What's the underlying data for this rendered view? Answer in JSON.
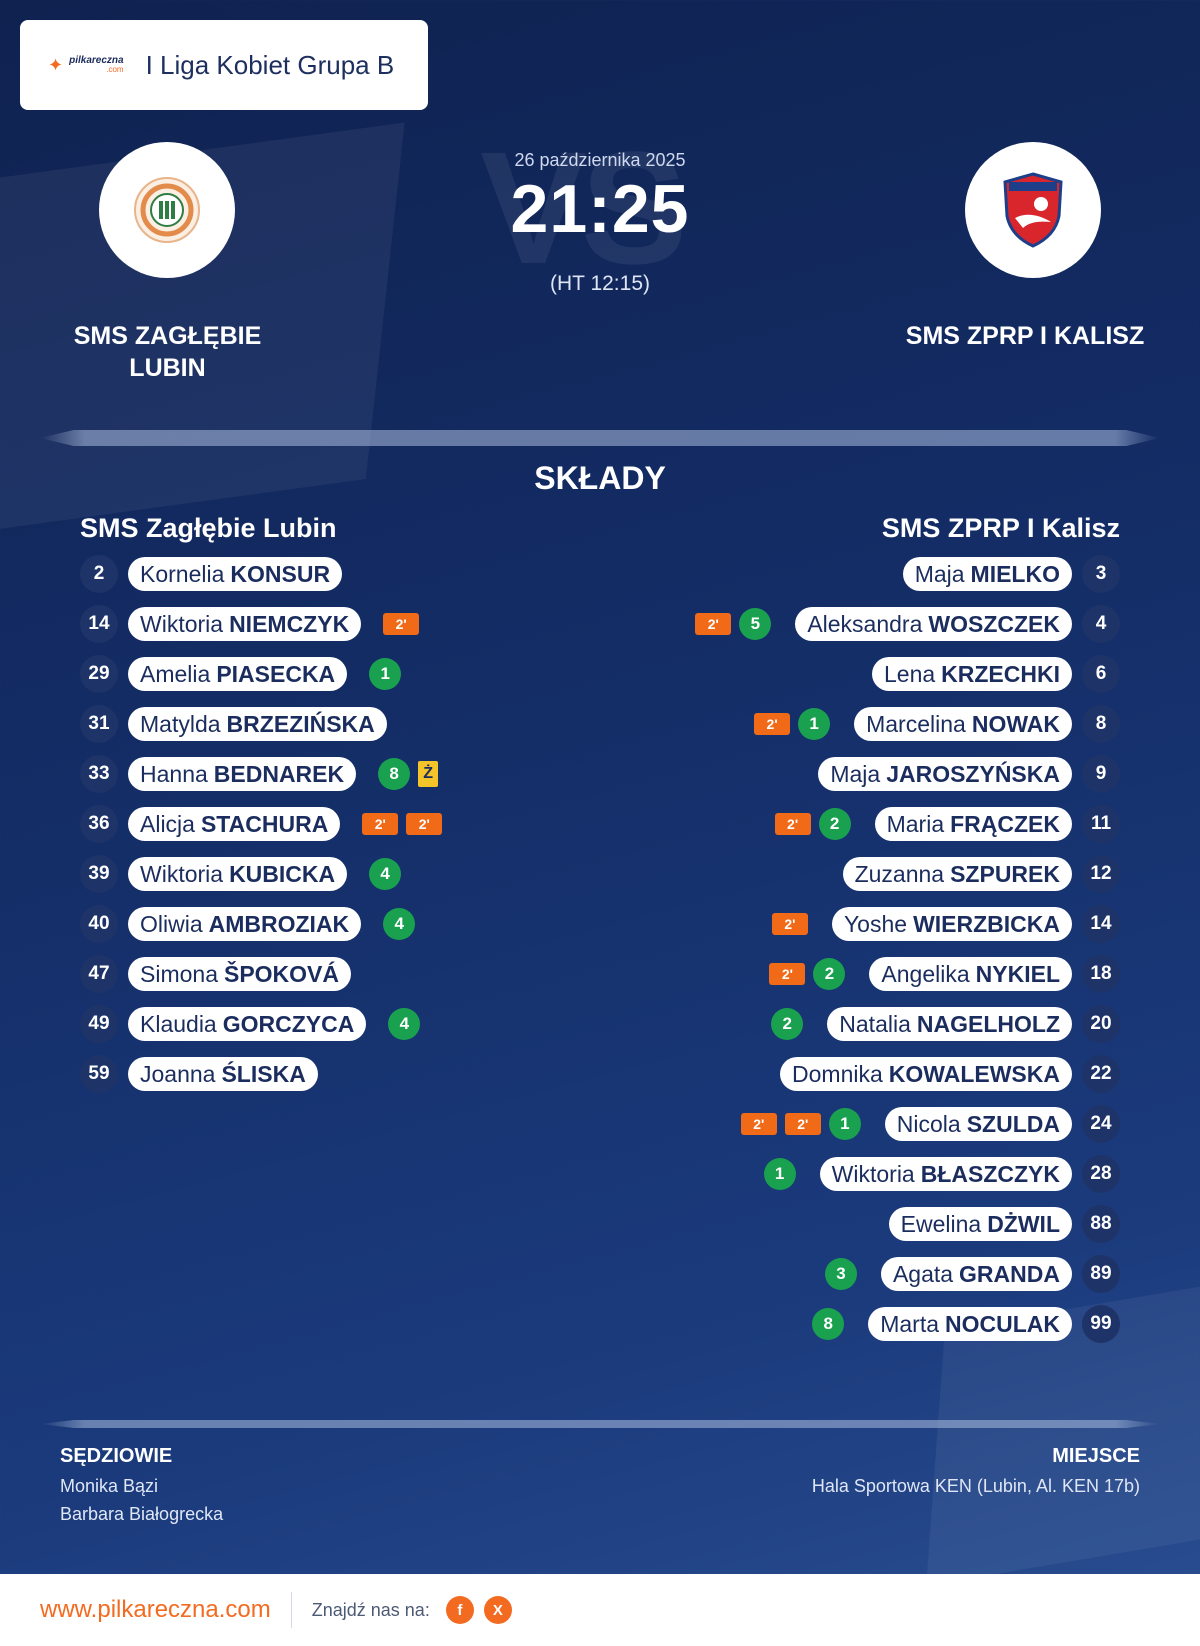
{
  "header": {
    "brand_name": "pilkareczna",
    "brand_domain": ".com",
    "league": "I Liga Kobiet Grupa B"
  },
  "match": {
    "date": "26 października 2025",
    "score": "21:25",
    "halftime": "(HT 12:15)",
    "vs_watermark": "VS"
  },
  "home": {
    "name_line1": "SMS ZAGŁĘBIE",
    "name_line2": "LUBIN",
    "lineup_title": "SMS Zagłębie Lubin",
    "players": [
      {
        "num": "2",
        "first": "Kornelia",
        "last": "KONSUR",
        "events": []
      },
      {
        "num": "14",
        "first": "Wiktoria",
        "last": "NIEMCZYK",
        "events": [
          "2'"
        ]
      },
      {
        "num": "29",
        "first": "Amelia",
        "last": "PIASECKA",
        "events": [
          "1"
        ]
      },
      {
        "num": "31",
        "first": "Matylda",
        "last": "BRZEZIŃSKA",
        "events": []
      },
      {
        "num": "33",
        "first": "Hanna",
        "last": "BEDNAREK",
        "events": [
          "8",
          "Ż"
        ]
      },
      {
        "num": "36",
        "first": "Alicja",
        "last": "STACHURA",
        "events": [
          "2'",
          "2'"
        ]
      },
      {
        "num": "39",
        "first": "Wiktoria",
        "last": "KUBICKA",
        "events": [
          "4"
        ]
      },
      {
        "num": "40",
        "first": "Oliwia",
        "last": "AMBROZIAK",
        "events": [
          "4"
        ]
      },
      {
        "num": "47",
        "first": "Simona",
        "last": "ŠPOKOVÁ",
        "events": []
      },
      {
        "num": "49",
        "first": "Klaudia",
        "last": "GORCZYCA",
        "events": [
          "4"
        ]
      },
      {
        "num": "59",
        "first": "Joanna",
        "last": "ŚLISKA",
        "events": []
      }
    ]
  },
  "away": {
    "name": "SMS ZPRP I KALISZ",
    "lineup_title": "SMS ZPRP I Kalisz",
    "players": [
      {
        "num": "3",
        "first": "Maja",
        "last": "MIELKO",
        "events": []
      },
      {
        "num": "4",
        "first": "Aleksandra",
        "last": "WOSZCZEK",
        "events": [
          "5",
          "2'"
        ]
      },
      {
        "num": "6",
        "first": "Lena",
        "last": "KRZECHKI",
        "events": []
      },
      {
        "num": "8",
        "first": "Marcelina",
        "last": "NOWAK",
        "events": [
          "1",
          "2'"
        ]
      },
      {
        "num": "9",
        "first": "Maja",
        "last": "JAROSZYŃSKA",
        "events": []
      },
      {
        "num": "11",
        "first": "Maria",
        "last": "FRĄCZEK",
        "events": [
          "2",
          "2'"
        ]
      },
      {
        "num": "12",
        "first": "Zuzanna",
        "last": "SZPUREK",
        "events": []
      },
      {
        "num": "14",
        "first": "Yoshe",
        "last": "WIERZBICKA",
        "events": [
          "2'"
        ]
      },
      {
        "num": "18",
        "first": "Angelika",
        "last": "NYKIEL",
        "events": [
          "2",
          "2'"
        ]
      },
      {
        "num": "20",
        "first": "Natalia",
        "last": "NAGELHOLZ",
        "events": [
          "2"
        ]
      },
      {
        "num": "22",
        "first": "Domnika",
        "last": "KOWALEWSKA",
        "events": []
      },
      {
        "num": "24",
        "first": "Nicola",
        "last": "SZULDA",
        "events": [
          "1",
          "2'",
          "2'"
        ]
      },
      {
        "num": "28",
        "first": "Wiktoria",
        "last": "BŁASZCZYK",
        "events": [
          "1"
        ]
      },
      {
        "num": "88",
        "first": "Ewelina",
        "last": "DŻWIL",
        "events": []
      },
      {
        "num": "89",
        "first": "Agata",
        "last": "GRANDA",
        "events": [
          "3"
        ]
      },
      {
        "num": "99",
        "first": "Marta",
        "last": "NOCULAK",
        "events": [
          "8"
        ]
      }
    ]
  },
  "sections": {
    "lineups": "SKŁADY",
    "referees_heading": "SĘDZIOWIE",
    "venue_heading": "MIEJSCE"
  },
  "referees": [
    "Monika Bązi",
    "Barbara Białogrecka"
  ],
  "venue": "Hala Sportowa KEN (Lubin, Al. KEN 17b)",
  "footer": {
    "site": "www.pilkareczna.com",
    "find_us": "Znajdź nas na:",
    "social": [
      "f",
      "X"
    ]
  },
  "colors": {
    "accent": "#f36b21",
    "goal": "#19a14f",
    "suspension": "#f06a17",
    "yellow_card": "#f4c428",
    "navy": "#142e68"
  }
}
